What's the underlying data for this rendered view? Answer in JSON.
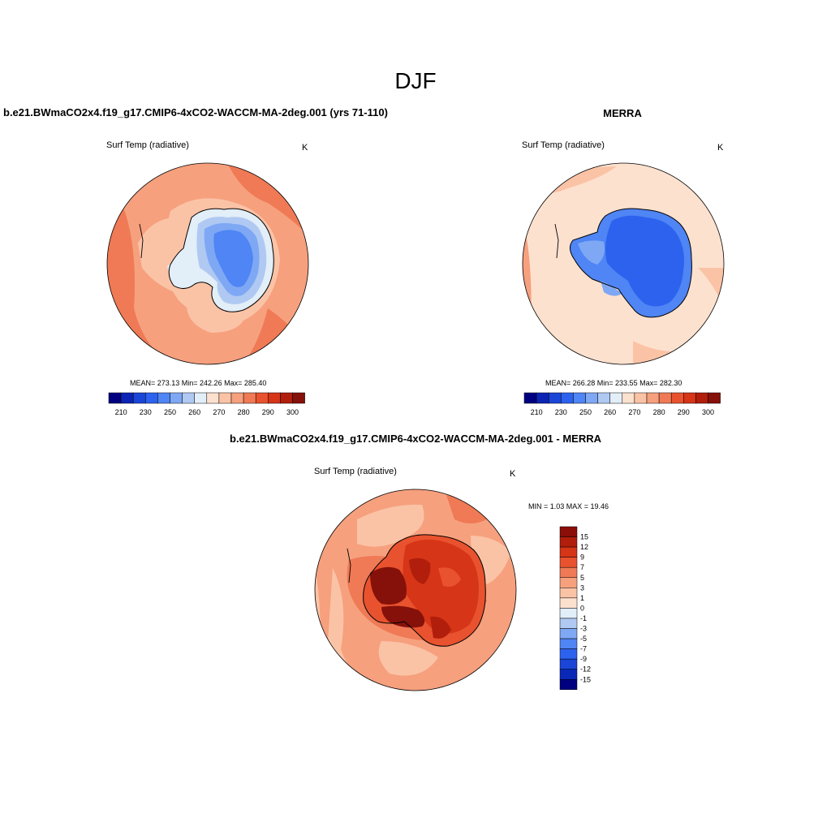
{
  "suptitle": "DJF",
  "colors": {
    "abs_scale": [
      "#000080",
      "#0c24b4",
      "#1a45d6",
      "#2c62ee",
      "#4f85f4",
      "#7fa8f4",
      "#b0c9f2",
      "#e2eef8",
      "#fde1cf",
      "#fbc3a6",
      "#f6a07e",
      "#ef7a55",
      "#e9522e",
      "#d63517",
      "#b11e0c",
      "#85110a"
    ],
    "diff_scale": [
      "#000080",
      "#0a28b8",
      "#1a45d6",
      "#2c62ee",
      "#4f85f4",
      "#7fa8f4",
      "#b0c9f2",
      "#e2eef8",
      "#fde1cf",
      "#fbc3a6",
      "#f6a07e",
      "#ef7a55",
      "#e9522e",
      "#d63517",
      "#b11e0c",
      "#8b0e08"
    ]
  },
  "panels": {
    "model": {
      "title": "b.e21.BWmaCO2x4.f19_g17.CMIP6-4xCO2-WACCM-MA-2deg.001 (yrs 71-110)",
      "variable": "Surf Temp (radiative)",
      "units": "K",
      "stats_text": "MEAN= 273.13  Min= 242.26  Max= 285.40",
      "mean": 273.13,
      "min": 242.26,
      "max": 285.4
    },
    "obs": {
      "title": "MERRA",
      "variable": "Surf Temp (radiative)",
      "units": "K",
      "stats_text": "MEAN= 266.28  Min= 233.55  Max= 282.30",
      "mean": 266.28,
      "min": 233.55,
      "max": 282.3
    },
    "diff": {
      "title": "b.e21.BWmaCO2x4.f19_g17.CMIP6-4xCO2-WACCM-MA-2deg.001 - MERRA",
      "variable": "Surf Temp (radiative)",
      "units": "K",
      "stats_text": "MIN =   1.03 MAX =  19.46",
      "min": 1.03,
      "max": 19.46
    }
  },
  "colorbars": {
    "abs_labels": [
      "210",
      "230",
      "250",
      "260",
      "270",
      "280",
      "290",
      "300"
    ],
    "diff_labels": [
      "15",
      "12",
      "9",
      "7",
      "5",
      "3",
      "1",
      "0",
      "-1",
      "-3",
      "-5",
      "-7",
      "-9",
      "-12",
      "-15"
    ]
  }
}
